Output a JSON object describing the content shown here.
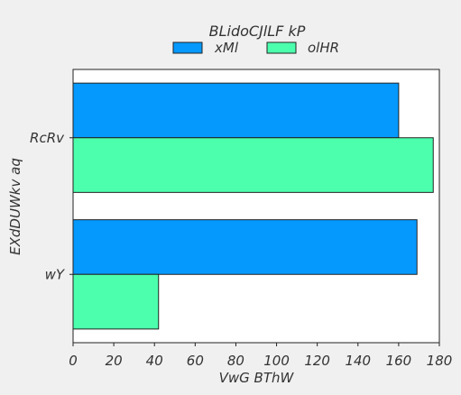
{
  "chart_data": {
    "type": "bar",
    "orientation": "horizontal",
    "categories": [
      "RcRv",
      "wY"
    ],
    "series": [
      {
        "name": "xMl",
        "color": "#0599fe",
        "values": [
          160,
          169
        ]
      },
      {
        "name": "olHR",
        "color": "#4cffad",
        "values": [
          177,
          42
        ]
      }
    ],
    "xlabel": "VwG BThW",
    "ylabel": "EXdDUWkv aq",
    "xlim": [
      0,
      180
    ],
    "xticks": [
      0,
      20,
      40,
      60,
      80,
      100,
      120,
      140,
      160,
      180
    ],
    "legend_title": "BLidoCJlLF kP",
    "legend_position": "top-center",
    "grid": false
  }
}
